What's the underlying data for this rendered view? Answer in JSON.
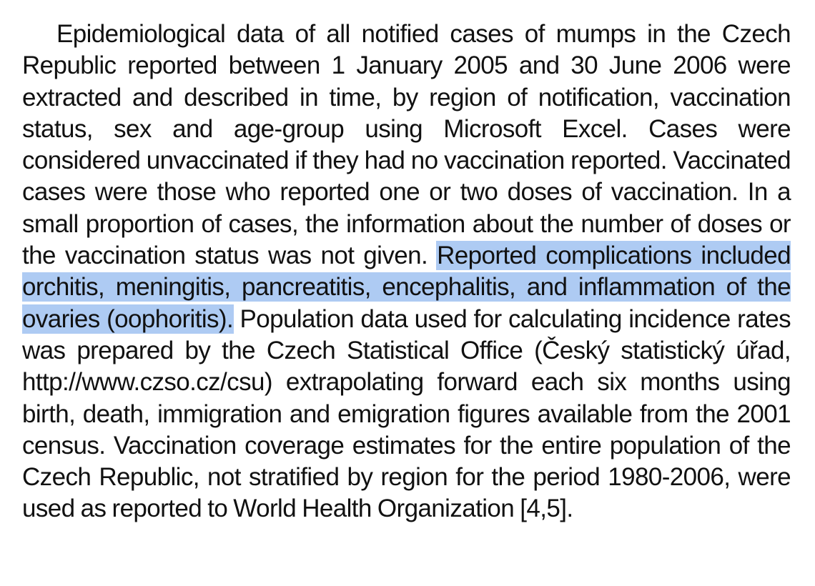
{
  "paragraph": {
    "before_highlight": "Epidemiological data of all notified cases of mumps in the Czech Republic reported between 1 January 2005 and 30 June 2006 were extracted and described in time, by region of notification, vaccination status, sex and age-group using Microsoft Excel. Cases were considered unvaccinated if they had no vaccination reported. Vaccinated cases were those who reported one or two doses of vaccination. In a small proportion of cases, the information about the number of doses or the vaccination status was not given.",
    "highlighted": "Reported complications included orchitis, meningitis, pancreatitis, encephalitis, and inflammation of the ovaries (oophoritis).",
    "after_highlight": "Population data used for calculating incidence rates was prepared by the Czech Statistical Office (Český statistický úřad, http://www.czso.cz/csu) extrapolating forward each six months using birth, death, immigration and emigration figures available from the 2001 census. Vaccination coverage estimates for the entire population of the Czech Republic, not stratified by region for the period 1980-2006, were used as reported to World Health Organization [4,5]."
  },
  "colors": {
    "selection_highlight": "#aecbf3",
    "text": "#111111"
  }
}
